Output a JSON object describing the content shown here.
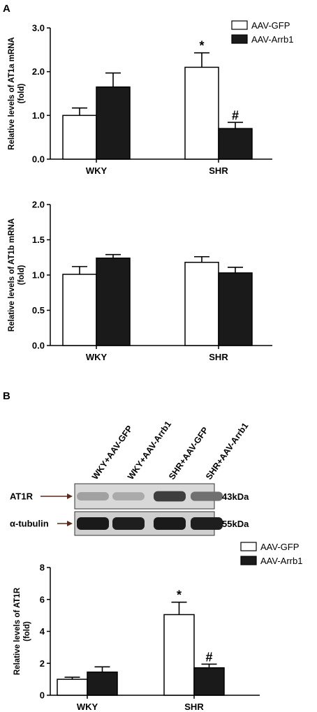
{
  "panels": {
    "a": {
      "letter": "A"
    },
    "b": {
      "letter": "B"
    }
  },
  "blot": {
    "lanes": [
      "WKY+AAV-GFP",
      "WKY+AAV-Arrb1",
      "SHR+AAV-GFP",
      "SHR+AAV-Arrb1"
    ],
    "rows": [
      {
        "label": "AT1R",
        "mw": "43kDa",
        "intensities": [
          0.32,
          0.28,
          0.78,
          0.55
        ]
      },
      {
        "label": "α-tubulin",
        "mw": "55kDa",
        "intensities": [
          0.95,
          0.93,
          0.95,
          0.93
        ]
      }
    ],
    "colors": {
      "arrow": "#5a2a1a"
    }
  },
  "colors": {
    "gfp": "#ffffff",
    "arrb1": "#1a1a1a",
    "stroke": "#000000"
  },
  "chart_data": [
    {
      "type": "bar",
      "ylabel": [
        "Relative levels of AT1a mRNA",
        "(fold)"
      ],
      "categories": [
        "WKY",
        "SHR"
      ],
      "ylim": [
        0,
        3.0
      ],
      "yticks": [
        "0.0",
        "1.0",
        "2.0",
        "3.0"
      ],
      "legend": "top-right",
      "series": [
        {
          "name": "AAV-GFP",
          "values": [
            1.0,
            2.1
          ],
          "errors": [
            0.17,
            0.33
          ]
        },
        {
          "name": "AAV-Arrb1",
          "values": [
            1.65,
            0.7
          ],
          "errors": [
            0.32,
            0.14
          ]
        }
      ],
      "annotations": [
        {
          "category": "SHR",
          "series": "AAV-GFP",
          "text": "*"
        },
        {
          "category": "SHR",
          "series": "AAV-Arrb1",
          "text": "#"
        }
      ]
    },
    {
      "type": "bar",
      "ylabel": [
        "Relative levels of AT1b mRNA",
        "(fold)"
      ],
      "categories": [
        "WKY",
        "SHR"
      ],
      "ylim": [
        0,
        2.0
      ],
      "yticks": [
        "0.0",
        "0.5",
        "1.0",
        "1.5",
        "2.0"
      ],
      "series": [
        {
          "values": [
            1.01,
            1.18
          ],
          "errors": [
            0.11,
            0.08
          ]
        },
        {
          "values": [
            1.24,
            1.03
          ],
          "errors": [
            0.05,
            0.08
          ]
        }
      ],
      "annotations": []
    },
    {
      "type": "bar",
      "ylabel": [
        "Relative levels of AT1R",
        "(fold)"
      ],
      "categories": [
        "WKY",
        "SHR"
      ],
      "ylim": [
        0,
        8
      ],
      "yticks": [
        "0",
        "2",
        "4",
        "6",
        "8"
      ],
      "legend": "top-right",
      "series": [
        {
          "name": "AAV-GFP",
          "values": [
            1.0,
            5.05
          ],
          "errors": [
            0.13,
            0.78
          ]
        },
        {
          "name": "AAV-Arrb1",
          "values": [
            1.45,
            1.72
          ],
          "errors": [
            0.33,
            0.23
          ]
        }
      ],
      "annotations": [
        {
          "category": "SHR",
          "series": "AAV-GFP",
          "text": "*"
        },
        {
          "category": "SHR",
          "series": "AAV-Arrb1",
          "text": "#"
        }
      ]
    }
  ]
}
